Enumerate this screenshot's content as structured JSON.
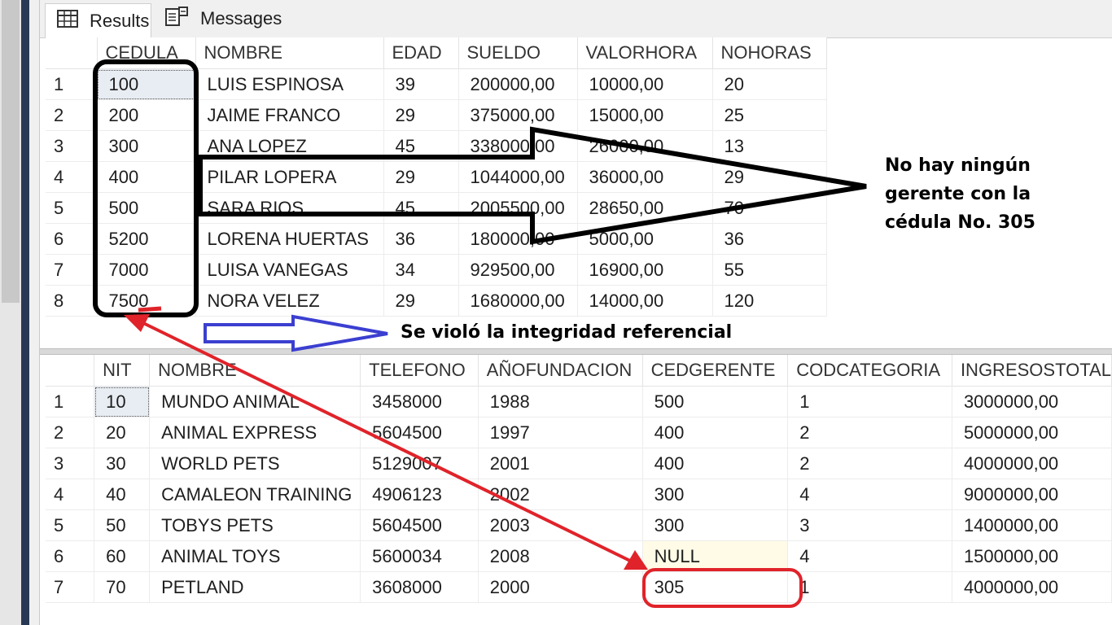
{
  "tabs": [
    {
      "label": "Results",
      "icon": "grid-icon"
    },
    {
      "label": "Messages",
      "icon": "messages-icon"
    }
  ],
  "grid1": {
    "columns": [
      "",
      "CEDULA",
      "NOMBRE",
      "EDAD",
      "SUELDO",
      "VALORHORA",
      "NOHORAS"
    ],
    "rows": [
      [
        "1",
        "100",
        "LUIS ESPINOSA",
        "39",
        "200000,00",
        "10000,00",
        "20"
      ],
      [
        "2",
        "200",
        "JAIME FRANCO",
        "29",
        "375000,00",
        "15000,00",
        "25"
      ],
      [
        "3",
        "300",
        "ANA LOPEZ",
        "45",
        "338000,00",
        "26000,00",
        "13"
      ],
      [
        "4",
        "400",
        "PILAR LOPERA",
        "29",
        "1044000,00",
        "36000,00",
        "29"
      ],
      [
        "5",
        "500",
        "SARA RIOS",
        "45",
        "2005500,00",
        "28650,00",
        "70"
      ],
      [
        "6",
        "5200",
        "LORENA HUERTAS",
        "36",
        "180000,00",
        "5000,00",
        "36"
      ],
      [
        "7",
        "7000",
        "LUISA VANEGAS",
        "34",
        "929500,00",
        "16900,00",
        "55"
      ],
      [
        "8",
        "7500",
        "NORA VELEZ",
        "29",
        "1680000,00",
        "14000,00",
        "120"
      ]
    ]
  },
  "grid2": {
    "columns": [
      "",
      "NIT",
      "NOMBRE",
      "TELEFONO",
      "AÑOFUNDACION",
      "CEDGERENTE",
      "CODCATEGORIA",
      "INGRESOSTOTAL"
    ],
    "rows": [
      [
        "1",
        "10",
        "MUNDO ANIMAL",
        "3458000",
        "1988",
        "500",
        "1",
        "3000000,00"
      ],
      [
        "2",
        "20",
        "ANIMAL EXPRESS",
        "5604500",
        "1997",
        "400",
        "2",
        "5000000,00"
      ],
      [
        "3",
        "30",
        "WORLD PETS",
        "5129007",
        "2001",
        "400",
        "2",
        "4000000,00"
      ],
      [
        "4",
        "40",
        "CAMALEON TRAINING",
        "4906123",
        "2002",
        "300",
        "4",
        "9000000,00"
      ],
      [
        "5",
        "50",
        "TOBYS PETS",
        "5604500",
        "2003",
        "300",
        "3",
        "1400000,00"
      ],
      [
        "6",
        "60",
        "ANIMAL TOYS",
        "5600034",
        "2008",
        "NULL",
        "4",
        "1500000,00"
      ],
      [
        "7",
        "70",
        "PETLAND",
        "3608000",
        "2000",
        "305",
        "1",
        "4000000,00"
      ]
    ]
  },
  "annotations": {
    "note_right_line1": "No hay ningún",
    "note_right_line2": "gerente con la",
    "note_right_line3": "cédula No. 305",
    "note_mid": "Se violó la integridad referencial"
  },
  "colors": {
    "accent_red": "#e0232a",
    "accent_blue": "#3b3fd0",
    "annotation_black": "#000000"
  }
}
